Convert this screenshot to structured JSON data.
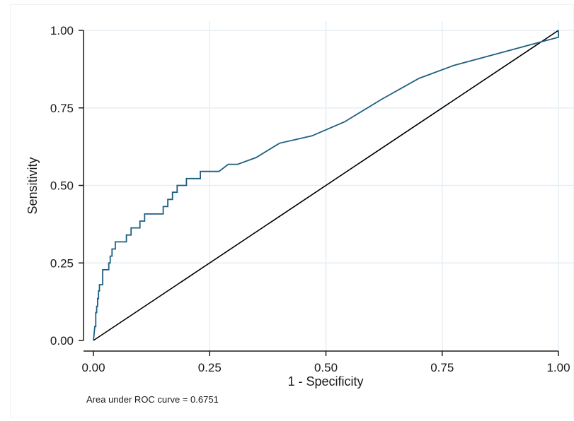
{
  "chart_data": {
    "type": "line",
    "xlabel": "1 - Specificity",
    "ylabel": "Sensitivity",
    "xlim": [
      0,
      1
    ],
    "ylim": [
      0,
      1
    ],
    "xticks": [
      "0.00",
      "0.25",
      "0.50",
      "0.75",
      "1.00"
    ],
    "yticks": [
      "0.00",
      "0.25",
      "0.50",
      "0.75",
      "1.00"
    ],
    "grid": true,
    "annotation": "Area under ROC curve = 0.6751",
    "colors": {
      "roc": "#1e5f80",
      "reference": "#000000",
      "grid": "#e6eef2"
    },
    "series": [
      {
        "x": [
          0.0,
          0.003,
          0.005,
          0.005,
          0.007,
          0.007,
          0.009,
          0.009,
          0.011,
          0.011,
          0.013,
          0.013,
          0.015,
          0.015,
          0.02,
          0.02,
          0.033,
          0.033,
          0.036,
          0.036,
          0.04,
          0.04,
          0.047,
          0.047,
          0.071,
          0.071,
          0.081,
          0.081,
          0.1,
          0.1,
          0.11,
          0.11,
          0.12,
          0.12,
          0.15,
          0.15,
          0.16,
          0.16,
          0.17,
          0.17,
          0.18,
          0.18,
          0.2,
          0.2,
          0.21,
          0.23,
          0.23,
          0.27,
          0.29,
          0.29,
          0.31,
          0.35,
          0.4,
          0.47,
          0.54,
          0.62,
          0.7,
          0.775,
          1.0,
          1.0
        ],
        "y": [
          0.0,
          0.045,
          0.045,
          0.09,
          0.09,
          0.11,
          0.11,
          0.135,
          0.135,
          0.16,
          0.16,
          0.18,
          0.18,
          0.18,
          0.18,
          0.228,
          0.228,
          0.25,
          0.25,
          0.272,
          0.272,
          0.295,
          0.295,
          0.318,
          0.318,
          0.34,
          0.34,
          0.363,
          0.363,
          0.385,
          0.385,
          0.408,
          0.408,
          0.408,
          0.408,
          0.432,
          0.432,
          0.455,
          0.455,
          0.478,
          0.478,
          0.5,
          0.5,
          0.522,
          0.522,
          0.522,
          0.545,
          0.545,
          0.568,
          0.568,
          0.568,
          0.59,
          0.636,
          0.66,
          0.705,
          0.778,
          0.845,
          0.887,
          0.978,
          1.0
        ]
      },
      {
        "x": [
          0,
          1
        ],
        "y": [
          0,
          1
        ]
      }
    ]
  }
}
